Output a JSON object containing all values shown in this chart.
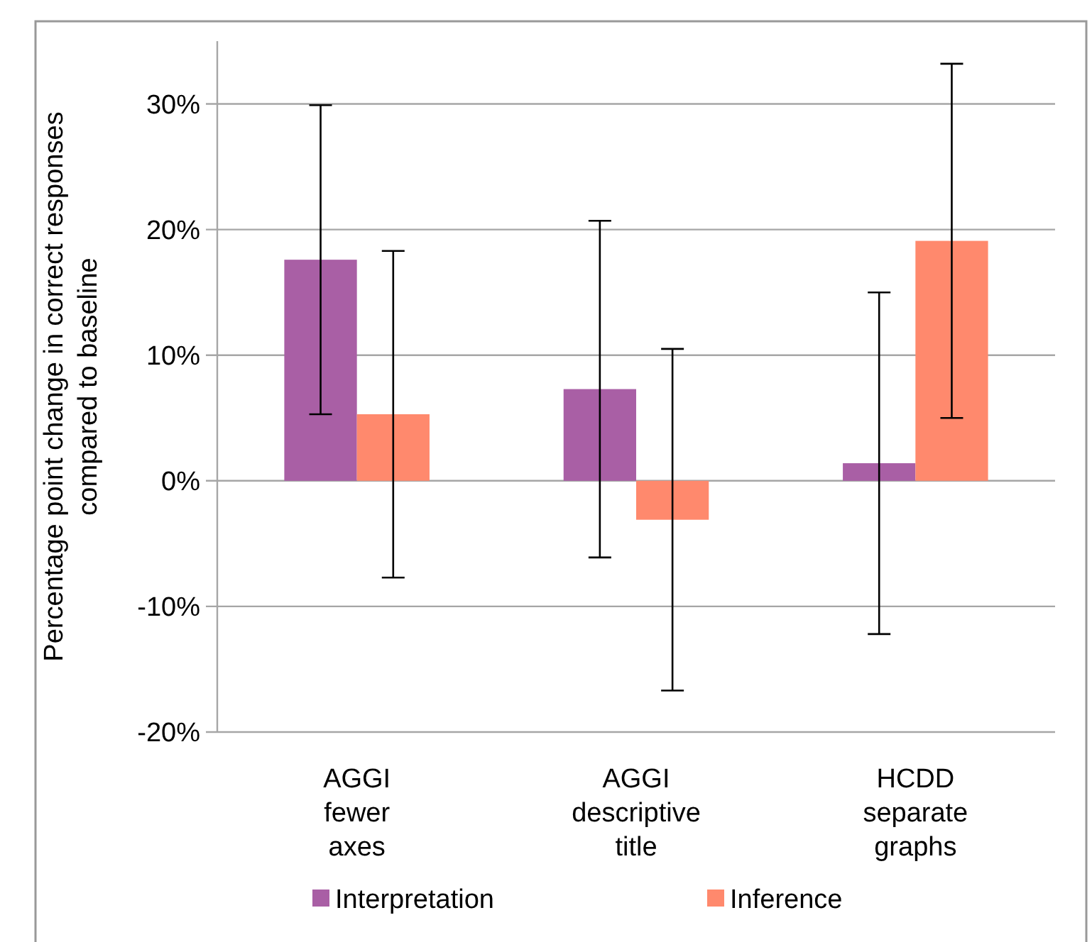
{
  "chart_data": {
    "type": "bar",
    "categories": [
      "AGGI fewer axes",
      "AGGI descriptive title",
      "HCDD separate graphs"
    ],
    "series": [
      {
        "name": "Interpretation",
        "color": "#a95fa5",
        "values": [
          17.6,
          7.3,
          1.4
        ],
        "errors": [
          12.3,
          13.4,
          13.6
        ]
      },
      {
        "name": "Inference",
        "color": "#ff896d",
        "values": [
          5.3,
          -3.1,
          19.1
        ],
        "errors": [
          13.0,
          13.6,
          14.1
        ]
      }
    ],
    "ylabel": "Percentage point change in correct responses compared to baseline",
    "ylim": [
      -20,
      35
    ],
    "yticks": [
      {
        "value": -20,
        "label": "-20%"
      },
      {
        "value": -10,
        "label": "-10%"
      },
      {
        "value": 0,
        "label": "0%"
      },
      {
        "value": 10,
        "label": "10%"
      },
      {
        "value": 20,
        "label": "20%"
      },
      {
        "value": 30,
        "label": "30%"
      }
    ],
    "grid": "y",
    "legend": "bottom"
  }
}
